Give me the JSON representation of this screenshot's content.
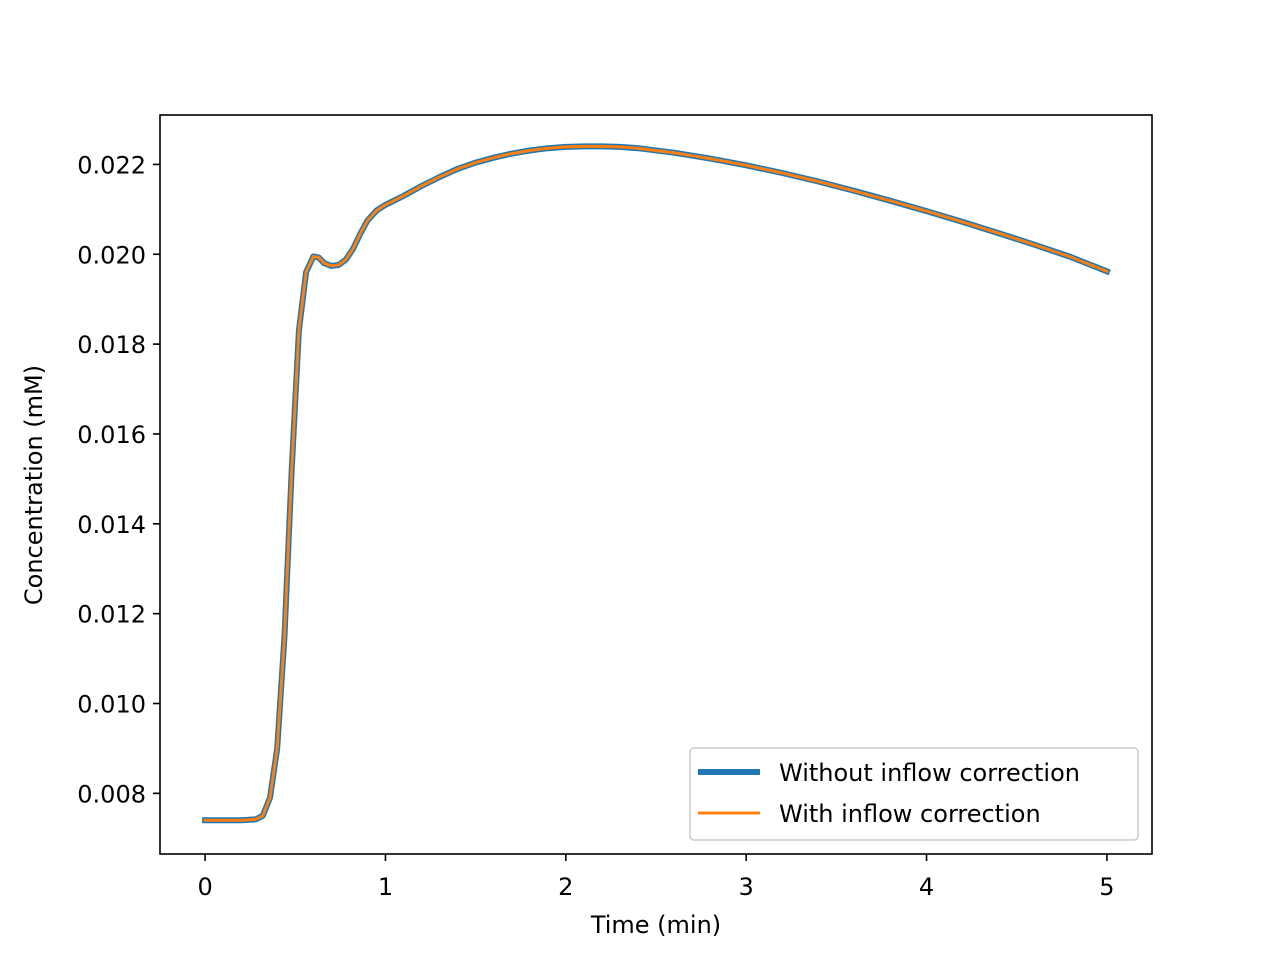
{
  "chart_data": {
    "type": "line",
    "title": "",
    "xlabel": "Time (min)",
    "ylabel": "Concentration (mM)",
    "xlim": [
      -0.25,
      5.25
    ],
    "ylim": [
      0.00665,
      0.0231
    ],
    "xticks": [
      0,
      1,
      2,
      3,
      4,
      5
    ],
    "xtick_labels": [
      "0",
      "1",
      "2",
      "3",
      "4",
      "5"
    ],
    "yticks": [
      0.008,
      0.01,
      0.012,
      0.014,
      0.016,
      0.018,
      0.02,
      0.022
    ],
    "ytick_labels": [
      "0.008",
      "0.010",
      "0.012",
      "0.014",
      "0.016",
      "0.018",
      "0.020",
      "0.022"
    ],
    "grid": false,
    "legend_position": "lower-right",
    "x": [
      0,
      0.1,
      0.2,
      0.28,
      0.32,
      0.36,
      0.4,
      0.44,
      0.48,
      0.52,
      0.56,
      0.6,
      0.63,
      0.66,
      0.7,
      0.74,
      0.78,
      0.82,
      0.86,
      0.9,
      0.95,
      1.0,
      1.1,
      1.2,
      1.3,
      1.4,
      1.5,
      1.6,
      1.7,
      1.8,
      1.9,
      2.0,
      2.1,
      2.2,
      2.3,
      2.4,
      2.6,
      2.8,
      3.0,
      3.2,
      3.4,
      3.6,
      3.8,
      4.0,
      4.2,
      4.4,
      4.6,
      4.8,
      5.0
    ],
    "series": [
      {
        "name": "Without inflow correction",
        "color": "#1f77b4",
        "values": [
          0.0074,
          0.0074,
          0.0074,
          0.00742,
          0.0075,
          0.0079,
          0.009,
          0.0115,
          0.0152,
          0.0183,
          0.0196,
          0.01995,
          0.01993,
          0.0198,
          0.01974,
          0.01976,
          0.01988,
          0.02012,
          0.02045,
          0.02075,
          0.02097,
          0.0211,
          0.0213,
          0.02152,
          0.02172,
          0.0219,
          0.02204,
          0.02215,
          0.02224,
          0.02231,
          0.02236,
          0.02239,
          0.0224,
          0.0224,
          0.02239,
          0.02236,
          0.02226,
          0.02213,
          0.02198,
          0.02181,
          0.02162,
          0.02141,
          0.02119,
          0.02096,
          0.02072,
          0.02047,
          0.02021,
          0.01994,
          0.01962
        ]
      },
      {
        "name": "With inflow correction",
        "color": "#ff7f0e",
        "values": [
          0.0074,
          0.0074,
          0.0074,
          0.00742,
          0.0075,
          0.0079,
          0.009,
          0.0115,
          0.0152,
          0.0183,
          0.0196,
          0.01995,
          0.01993,
          0.0198,
          0.01974,
          0.01976,
          0.01988,
          0.02012,
          0.02045,
          0.02075,
          0.02097,
          0.0211,
          0.0213,
          0.02152,
          0.02172,
          0.0219,
          0.02204,
          0.02215,
          0.02224,
          0.02231,
          0.02236,
          0.02239,
          0.0224,
          0.0224,
          0.02239,
          0.02236,
          0.02226,
          0.02213,
          0.02198,
          0.02181,
          0.02162,
          0.02141,
          0.02119,
          0.02096,
          0.02072,
          0.02047,
          0.02021,
          0.01994,
          0.01962
        ]
      }
    ]
  }
}
